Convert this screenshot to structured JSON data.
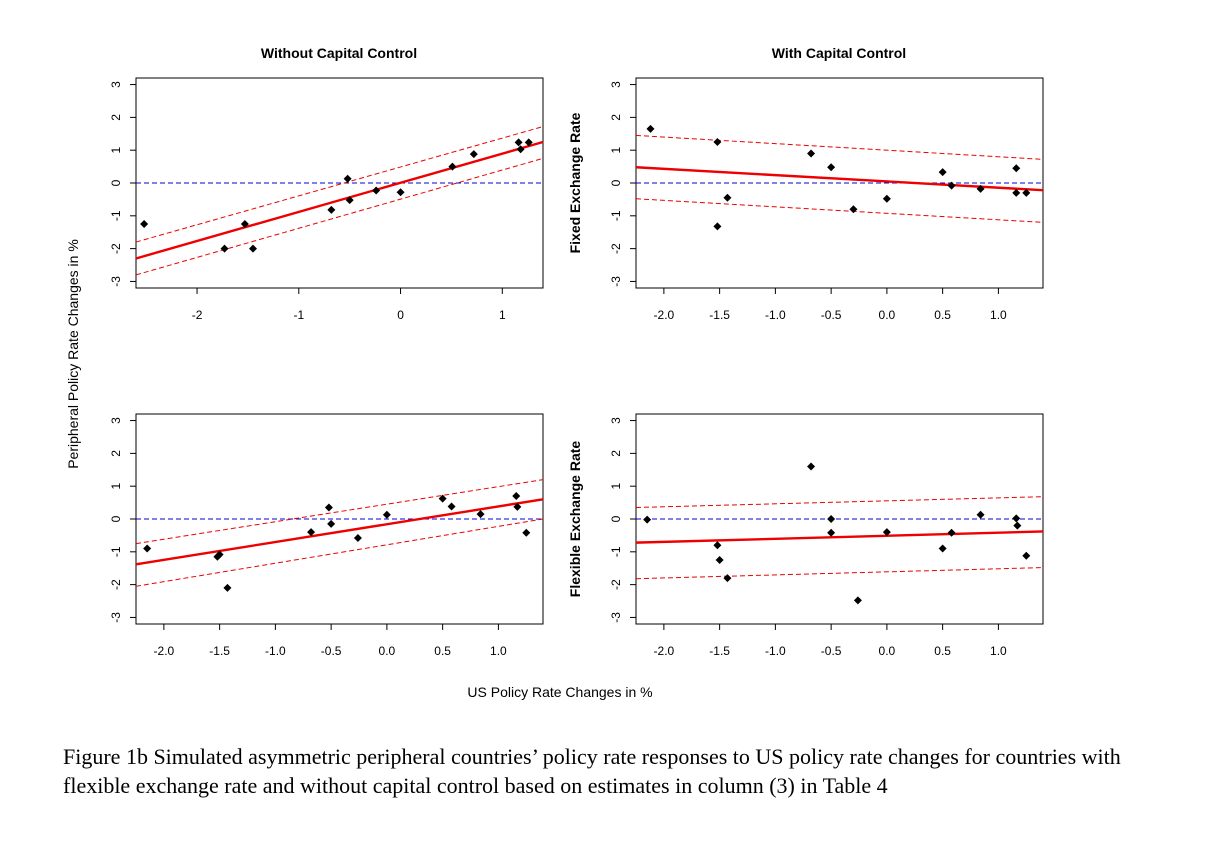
{
  "figure": {
    "col_titles": [
      "Without Capital Control",
      "With Capital Control"
    ],
    "row_labels": [
      "Fixed Exchange Rate",
      "Flexible Exchange Rate"
    ],
    "y_axis_label": "Peripheral Policy Rate Changes in %",
    "x_axis_label": "US Policy Rate Changes in %",
    "caption": "Figure 1b Simulated asymmetric peripheral countries’ policy rate responses to US policy rate changes for countries with flexible exchange rate and without capital control based on estimates in column (3) in Table 4"
  },
  "colors": {
    "fit_line": "#ee0000",
    "ci_line": "#ee0000",
    "zero_line": "#0000dd",
    "points": "#000000"
  },
  "chart_data": [
    {
      "type": "scatter",
      "title": "Without Capital Control",
      "row": "",
      "xlim": [
        -2.6,
        1.4
      ],
      "ylim": [
        -3.2,
        3.2
      ],
      "xticks": [
        -2,
        -1,
        0,
        1
      ],
      "xtick_labels": [
        "-2",
        "-1",
        "0",
        "1"
      ],
      "yticks": [
        -3,
        -2,
        -1,
        0,
        1,
        2,
        3
      ],
      "ytick_labels": [
        "-3",
        "-2",
        "-1",
        "0",
        "1",
        "2",
        "3"
      ],
      "points": [
        [
          -2.52,
          -1.25
        ],
        [
          -1.73,
          -2.0
        ],
        [
          -1.53,
          -1.25
        ],
        [
          -1.45,
          -2.0
        ],
        [
          -0.68,
          -0.82
        ],
        [
          -0.52,
          0.13
        ],
        [
          -0.5,
          -0.52
        ],
        [
          -0.24,
          -0.23
        ],
        [
          0.0,
          -0.28
        ],
        [
          0.51,
          0.5
        ],
        [
          0.72,
          0.88
        ],
        [
          1.16,
          1.24
        ],
        [
          1.18,
          1.03
        ],
        [
          1.26,
          1.24
        ]
      ],
      "fit": [
        [
          -2.6,
          -2.3
        ],
        [
          1.4,
          1.25
        ]
      ],
      "ci_upper": [
        [
          -2.6,
          -1.8
        ],
        [
          1.4,
          1.72
        ]
      ],
      "ci_lower": [
        [
          -2.6,
          -2.8
        ],
        [
          1.4,
          0.75
        ]
      ],
      "zero_line": 0
    },
    {
      "type": "scatter",
      "title": "With Capital Control",
      "row": "Fixed Exchange Rate",
      "xlim": [
        -2.25,
        1.4
      ],
      "ylim": [
        -3.2,
        3.2
      ],
      "xticks": [
        -2.0,
        -1.5,
        -1.0,
        -0.5,
        0.0,
        0.5,
        1.0
      ],
      "xtick_labels": [
        "-2.0",
        "-1.5",
        "-1.0",
        "-0.5",
        "0.0",
        "0.5",
        "1.0"
      ],
      "yticks": [
        -3,
        -2,
        -1,
        0,
        1,
        2,
        3
      ],
      "ytick_labels": [
        "-3",
        "-2",
        "-1",
        "0",
        "1",
        "2",
        "3"
      ],
      "points": [
        [
          -2.12,
          1.65
        ],
        [
          -1.52,
          1.25
        ],
        [
          -1.52,
          -1.32
        ],
        [
          -1.43,
          -0.45
        ],
        [
          -0.68,
          0.9
        ],
        [
          -0.5,
          0.48
        ],
        [
          -0.3,
          -0.8
        ],
        [
          0.0,
          -0.48
        ],
        [
          0.5,
          0.33
        ],
        [
          0.58,
          -0.08
        ],
        [
          0.84,
          -0.18
        ],
        [
          1.16,
          0.45
        ],
        [
          1.16,
          -0.3
        ],
        [
          1.25,
          -0.3
        ]
      ],
      "fit": [
        [
          -2.25,
          0.48
        ],
        [
          1.4,
          -0.22
        ]
      ],
      "ci_upper": [
        [
          -2.25,
          1.45
        ],
        [
          1.4,
          0.72
        ]
      ],
      "ci_lower": [
        [
          -2.25,
          -0.48
        ],
        [
          1.4,
          -1.2
        ]
      ],
      "zero_line": 0
    },
    {
      "type": "scatter",
      "title": "",
      "row": "",
      "xlim": [
        -2.25,
        1.4
      ],
      "ylim": [
        -3.2,
        3.2
      ],
      "xticks": [
        -2.0,
        -1.5,
        -1.0,
        -0.5,
        0.0,
        0.5,
        1.0
      ],
      "xtick_labels": [
        "-2.0",
        "-1.5",
        "-1.0",
        "-0.5",
        "0.0",
        "0.5",
        "1.0"
      ],
      "yticks": [
        -3,
        -2,
        -1,
        0,
        1,
        2,
        3
      ],
      "ytick_labels": [
        "-3",
        "-2",
        "-1",
        "0",
        "1",
        "2",
        "3"
      ],
      "points": [
        [
          -2.15,
          -0.9
        ],
        [
          -1.52,
          -1.15
        ],
        [
          -1.5,
          -1.08
        ],
        [
          -1.43,
          -2.1
        ],
        [
          -0.68,
          -0.4
        ],
        [
          -0.52,
          0.35
        ],
        [
          -0.5,
          -0.15
        ],
        [
          -0.26,
          -0.58
        ],
        [
          0.0,
          0.13
        ],
        [
          0.5,
          0.62
        ],
        [
          0.58,
          0.38
        ],
        [
          0.84,
          0.15
        ],
        [
          1.16,
          0.7
        ],
        [
          1.17,
          0.37
        ],
        [
          1.25,
          -0.42
        ]
      ],
      "fit": [
        [
          -2.25,
          -1.38
        ],
        [
          1.4,
          0.6
        ]
      ],
      "ci_upper": [
        [
          -2.25,
          -0.75
        ],
        [
          1.4,
          1.2
        ]
      ],
      "ci_lower": [
        [
          -2.25,
          -2.05
        ],
        [
          1.4,
          0.0
        ]
      ],
      "zero_line": 0
    },
    {
      "type": "scatter",
      "title": "",
      "row": "Flexible Exchange Rate",
      "xlim": [
        -2.25,
        1.4
      ],
      "ylim": [
        -3.2,
        3.2
      ],
      "xticks": [
        -2.0,
        -1.5,
        -1.0,
        -0.5,
        0.0,
        0.5,
        1.0
      ],
      "xtick_labels": [
        "-2.0",
        "-1.5",
        "-1.0",
        "-0.5",
        "0.0",
        "0.5",
        "1.0"
      ],
      "yticks": [
        -3,
        -2,
        -1,
        0,
        1,
        2,
        3
      ],
      "ytick_labels": [
        "-3",
        "-2",
        "-1",
        "0",
        "1",
        "2",
        "3"
      ],
      "points": [
        [
          -2.15,
          -0.02
        ],
        [
          -1.52,
          -0.8
        ],
        [
          -1.5,
          -1.25
        ],
        [
          -1.43,
          -1.8
        ],
        [
          -0.68,
          1.6
        ],
        [
          -0.5,
          0.0
        ],
        [
          -0.5,
          -0.42
        ],
        [
          -0.26,
          -2.48
        ],
        [
          0.0,
          -0.4
        ],
        [
          0.5,
          -0.9
        ],
        [
          0.58,
          -0.42
        ],
        [
          0.84,
          0.13
        ],
        [
          1.16,
          0.02
        ],
        [
          1.17,
          -0.2
        ],
        [
          1.25,
          -1.12
        ]
      ],
      "fit": [
        [
          -2.25,
          -0.72
        ],
        [
          1.4,
          -0.38
        ]
      ],
      "ci_upper": [
        [
          -2.25,
          0.35
        ],
        [
          1.4,
          0.68
        ]
      ],
      "ci_lower": [
        [
          -2.25,
          -1.82
        ],
        [
          1.4,
          -1.48
        ]
      ],
      "zero_line": 0
    }
  ]
}
